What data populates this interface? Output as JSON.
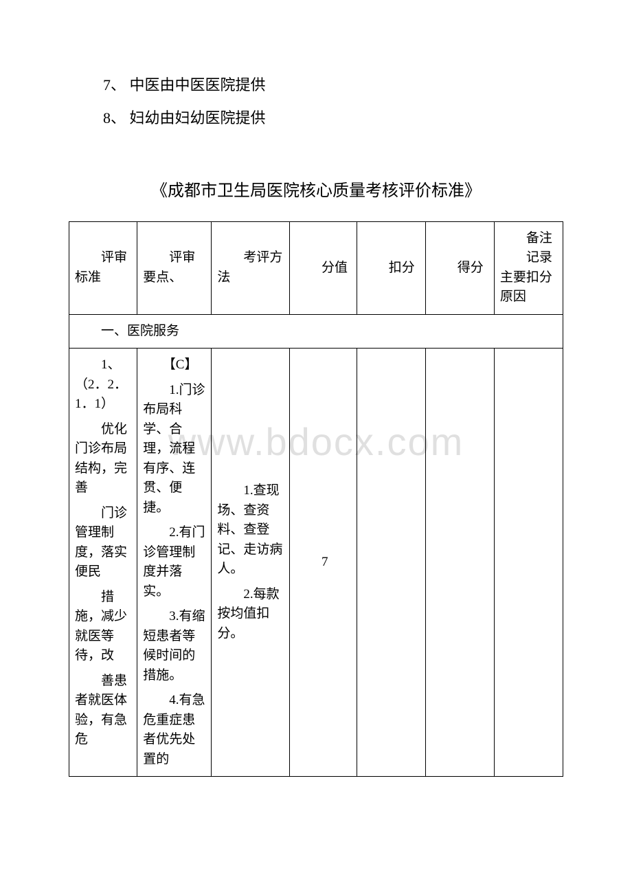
{
  "list": {
    "item7": "7、 中医由中医医院提供",
    "item8": "8、 妇幼由妇幼医院提供"
  },
  "title": "《成都市卫生局医院核心质量考核评价标准》",
  "watermark": "www.bdocx.com",
  "table": {
    "headers": {
      "col1": "　　评审标准",
      "col2": "　　评审要点、",
      "col3": "　　考评方法",
      "col4": "　　分值",
      "col5": "　　扣分",
      "col6": "　　得分",
      "col7_top": "　　备注",
      "col7_bottom": "　　记录主要扣分原因"
    },
    "section1": {
      "label": "　　一、医院服务"
    },
    "row1": {
      "standard_p1": "　　1、（2．2．1．1）",
      "standard_p2": "　　优化门诊布局结构，完善",
      "standard_p3": "　　门诊管理制度，落实便民",
      "standard_p4": "　　措施，减少就医等待，改",
      "standard_p5": "　　善患者就医体验，有急危",
      "points_p0": "　　【C】",
      "points_p1": "　　1.门诊布局科学、合理，流程有序、连贯、便捷。",
      "points_p2": "　　2.有门诊管理制度并落实。",
      "points_p3": "　　3.有缩短患者等候时间的措施。",
      "points_p4": "　　4.有急危重症患者优先处置的",
      "method_p1": "　　1.查现场、查资料、查登记、走访病人。",
      "method_p2": "　　2.每款按均值扣分。",
      "score": "　　7",
      "deduct": "",
      "gain": "",
      "remark": ""
    }
  }
}
